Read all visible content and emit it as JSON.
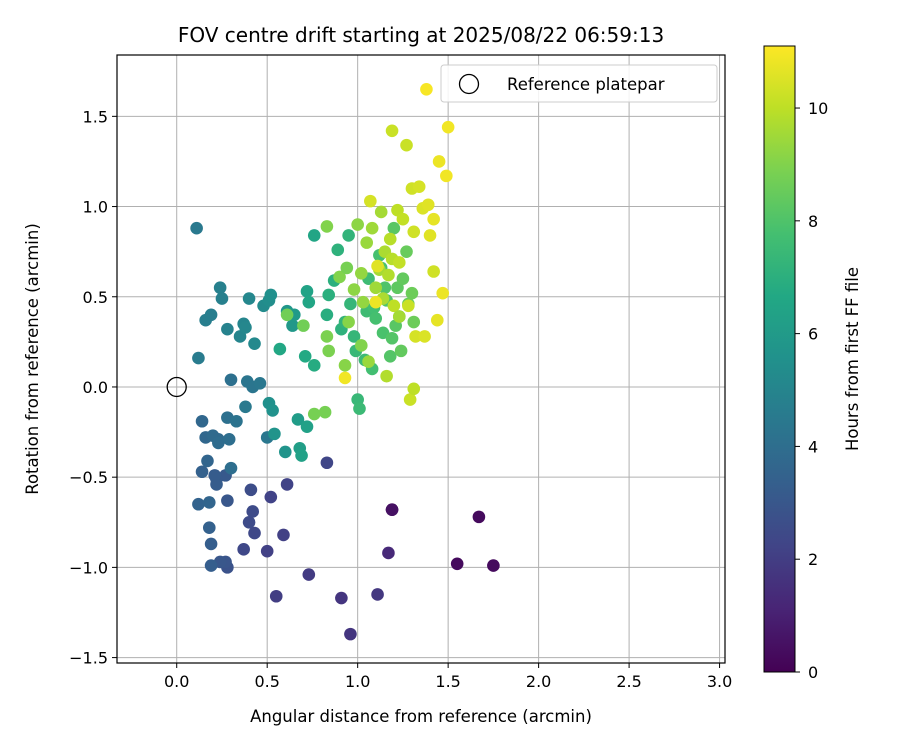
{
  "chart_data": {
    "type": "scatter",
    "title": "FOV centre drift starting at 2025/08/22 06:59:13",
    "xlabel": "Angular distance from reference (arcmin)",
    "ylabel": "Rotation from reference (arcmin)",
    "xlim": [
      -0.33,
      3.03
    ],
    "ylim": [
      -1.53,
      1.84
    ],
    "x_ticks": [
      0.0,
      0.5,
      1.0,
      1.5,
      2.0,
      2.5,
      3.0
    ],
    "x_tick_labels": [
      "0.0",
      "0.5",
      "1.0",
      "1.5",
      "2.0",
      "2.5",
      "3.0"
    ],
    "y_ticks": [
      -1.5,
      -1.0,
      -0.5,
      0.0,
      0.5,
      1.0,
      1.5
    ],
    "y_tick_labels": [
      "−1.5",
      "−1.0",
      "−0.5",
      "0.0",
      "0.5",
      "1.0",
      "1.5"
    ],
    "grid": true,
    "colormap": "viridis",
    "colorbar": {
      "label": "Hours from first FF file",
      "min": 0,
      "max": 11.1,
      "ticks": [
        0,
        2,
        4,
        6,
        8,
        10
      ],
      "tick_labels": [
        "0",
        "2",
        "4",
        "6",
        "8",
        "10"
      ]
    },
    "legend": {
      "position": "upper right",
      "entries": [
        {
          "label": "Reference platepar",
          "marker": "open-circle"
        }
      ]
    },
    "reference_point": {
      "x": 0.0,
      "y": 0.0
    },
    "points": [
      [
        1.19,
        -0.68,
        0.3
      ],
      [
        1.67,
        -0.72,
        0.3
      ],
      [
        1.55,
        -0.98,
        0.3
      ],
      [
        1.75,
        -0.99,
        0.3
      ],
      [
        1.19,
        -0.68,
        0.5
      ],
      [
        1.17,
        -0.92,
        1.3
      ],
      [
        0.96,
        -1.37,
        1.7
      ],
      [
        0.91,
        -1.17,
        1.7
      ],
      [
        1.11,
        -1.15,
        1.8
      ],
      [
        0.73,
        -1.04,
        1.9
      ],
      [
        0.55,
        -1.16,
        2.0
      ],
      [
        0.5,
        -0.91,
        2.1
      ],
      [
        0.59,
        -0.82,
        2.1
      ],
      [
        0.61,
        -0.54,
        2.2
      ],
      [
        0.52,
        -0.61,
        2.2
      ],
      [
        0.83,
        -0.42,
        2.3
      ],
      [
        0.37,
        -0.9,
        2.4
      ],
      [
        0.43,
        -0.81,
        2.4
      ],
      [
        0.4,
        -0.75,
        2.5
      ],
      [
        0.42,
        -0.69,
        2.5
      ],
      [
        0.41,
        -0.57,
        2.6
      ],
      [
        0.28,
        -1.0,
        2.8
      ],
      [
        0.27,
        -0.97,
        2.9
      ],
      [
        0.24,
        -0.97,
        3.0
      ],
      [
        0.28,
        -0.63,
        3.0
      ],
      [
        0.27,
        -0.49,
        3.1
      ],
      [
        0.22,
        -0.51,
        3.1
      ],
      [
        0.22,
        -0.54,
        3.2
      ],
      [
        0.21,
        -0.49,
        3.2
      ],
      [
        0.19,
        -0.99,
        3.3
      ],
      [
        0.19,
        -0.87,
        3.3
      ],
      [
        0.18,
        -0.78,
        3.4
      ],
      [
        0.14,
        -0.47,
        3.4
      ],
      [
        0.12,
        -0.65,
        3.5
      ],
      [
        0.18,
        -0.64,
        3.6
      ],
      [
        0.17,
        -0.41,
        3.6
      ],
      [
        0.16,
        -0.28,
        3.7
      ],
      [
        0.14,
        -0.19,
        3.7
      ],
      [
        0.2,
        -0.27,
        3.8
      ],
      [
        0.23,
        -0.29,
        3.8
      ],
      [
        0.23,
        -0.31,
        3.9
      ],
      [
        0.29,
        -0.29,
        4.0
      ],
      [
        0.3,
        -0.45,
        4.0
      ],
      [
        0.28,
        -0.17,
        4.1
      ],
      [
        0.3,
        0.04,
        4.1
      ],
      [
        0.33,
        -0.19,
        4.2
      ],
      [
        0.39,
        0.03,
        4.3
      ],
      [
        0.42,
        0.0,
        4.3
      ],
      [
        0.46,
        0.02,
        4.4
      ],
      [
        0.5,
        -0.28,
        4.4
      ],
      [
        0.38,
        -0.11,
        4.5
      ],
      [
        0.11,
        0.88,
        4.5
      ],
      [
        0.12,
        0.16,
        4.6
      ],
      [
        0.16,
        0.37,
        4.7
      ],
      [
        0.19,
        0.4,
        4.7
      ],
      [
        0.24,
        0.55,
        4.8
      ],
      [
        0.25,
        0.49,
        4.8
      ],
      [
        0.28,
        0.32,
        4.9
      ],
      [
        0.35,
        0.28,
        5.0
      ],
      [
        0.37,
        0.35,
        5.0
      ],
      [
        0.38,
        0.33,
        5.1
      ],
      [
        0.4,
        0.49,
        5.1
      ],
      [
        0.43,
        0.24,
        5.2
      ],
      [
        0.48,
        0.45,
        5.3
      ],
      [
        0.51,
        0.48,
        5.4
      ],
      [
        0.52,
        0.51,
        5.5
      ],
      [
        0.51,
        -0.09,
        5.5
      ],
      [
        0.53,
        -0.13,
        5.6
      ],
      [
        0.54,
        -0.26,
        5.7
      ],
      [
        0.6,
        -0.36,
        5.7
      ],
      [
        0.61,
        0.42,
        5.8
      ],
      [
        0.64,
        0.34,
        5.9
      ],
      [
        0.65,
        0.4,
        6.0
      ],
      [
        0.67,
        -0.18,
        6.1
      ],
      [
        0.68,
        -0.34,
        6.2
      ],
      [
        0.69,
        -0.38,
        6.3
      ],
      [
        0.72,
        -0.22,
        6.3
      ],
      [
        0.72,
        0.53,
        6.4
      ],
      [
        0.73,
        0.47,
        6.5
      ],
      [
        0.76,
        0.84,
        6.5
      ],
      [
        0.57,
        0.21,
        6.6
      ],
      [
        0.71,
        0.17,
        6.7
      ],
      [
        0.76,
        0.12,
        6.8
      ],
      [
        0.83,
        0.4,
        6.9
      ],
      [
        0.84,
        0.51,
        7.0
      ],
      [
        0.87,
        0.59,
        7.0
      ],
      [
        0.89,
        0.76,
        7.1
      ],
      [
        0.91,
        0.32,
        7.1
      ],
      [
        0.93,
        0.36,
        7.2
      ],
      [
        0.95,
        0.84,
        7.2
      ],
      [
        0.96,
        0.46,
        7.3
      ],
      [
        0.98,
        0.28,
        7.3
      ],
      [
        0.99,
        0.2,
        7.4
      ],
      [
        1.0,
        -0.07,
        7.4
      ],
      [
        1.01,
        -0.12,
        7.5
      ],
      [
        1.04,
        0.15,
        7.5
      ],
      [
        1.05,
        0.42,
        7.6
      ],
      [
        1.06,
        0.6,
        7.6
      ],
      [
        1.08,
        0.1,
        7.7
      ],
      [
        1.09,
        0.44,
        7.7
      ],
      [
        1.1,
        0.38,
        7.8
      ],
      [
        1.12,
        0.73,
        7.8
      ],
      [
        1.13,
        0.66,
        7.9
      ],
      [
        1.14,
        0.3,
        7.9
      ],
      [
        1.15,
        0.55,
        8.0
      ],
      [
        1.16,
        0.48,
        8.0
      ],
      [
        1.18,
        0.17,
        8.1
      ],
      [
        1.19,
        0.27,
        8.1
      ],
      [
        1.2,
        0.88,
        8.2
      ],
      [
        1.21,
        0.34,
        8.2
      ],
      [
        1.22,
        0.55,
        8.3
      ],
      [
        1.23,
        0.39,
        8.3
      ],
      [
        1.24,
        0.2,
        8.4
      ],
      [
        1.25,
        0.6,
        8.4
      ],
      [
        1.27,
        0.75,
        8.5
      ],
      [
        1.28,
        0.46,
        8.5
      ],
      [
        1.3,
        0.52,
        8.6
      ],
      [
        1.31,
        0.36,
        8.6
      ],
      [
        0.61,
        0.4,
        8.7
      ],
      [
        0.7,
        0.34,
        8.7
      ],
      [
        0.76,
        -0.15,
        8.8
      ],
      [
        0.82,
        -0.14,
        8.8
      ],
      [
        0.83,
        0.28,
        8.9
      ],
      [
        0.84,
        0.2,
        8.9
      ],
      [
        0.83,
        0.89,
        9.0
      ],
      [
        0.9,
        0.61,
        9.0
      ],
      [
        0.93,
        0.12,
        9.1
      ],
      [
        0.95,
        0.36,
        9.1
      ],
      [
        0.98,
        0.54,
        9.2
      ],
      [
        1.0,
        0.9,
        9.2
      ],
      [
        1.02,
        0.63,
        9.3
      ],
      [
        1.03,
        0.47,
        9.3
      ],
      [
        1.05,
        0.8,
        9.4
      ],
      [
        1.06,
        0.14,
        9.4
      ],
      [
        1.08,
        0.88,
        9.5
      ],
      [
        1.1,
        0.55,
        9.5
      ],
      [
        1.12,
        0.65,
        9.6
      ],
      [
        1.13,
        0.97,
        9.6
      ],
      [
        1.14,
        0.49,
        9.7
      ],
      [
        1.15,
        0.75,
        9.7
      ],
      [
        1.16,
        0.06,
        9.8
      ],
      [
        1.17,
        0.62,
        9.8
      ],
      [
        1.18,
        0.82,
        9.9
      ],
      [
        1.19,
        0.71,
        9.9
      ],
      [
        1.2,
        0.45,
        10.0
      ],
      [
        1.22,
        0.98,
        10.0
      ],
      [
        1.23,
        0.69,
        10.1
      ],
      [
        1.25,
        0.93,
        10.1
      ],
      [
        1.27,
        1.34,
        10.2
      ],
      [
        1.28,
        0.45,
        10.2
      ],
      [
        1.3,
        1.1,
        10.3
      ],
      [
        1.31,
        0.86,
        10.3
      ],
      [
        1.32,
        0.28,
        10.4
      ],
      [
        1.34,
        1.11,
        10.4
      ],
      [
        1.36,
        0.99,
        10.5
      ],
      [
        1.37,
        0.28,
        10.5
      ],
      [
        1.39,
        1.01,
        10.6
      ],
      [
        1.4,
        0.84,
        10.6
      ],
      [
        1.42,
        0.93,
        10.7
      ],
      [
        1.44,
        0.37,
        10.7
      ],
      [
        1.45,
        1.25,
        10.8
      ],
      [
        1.47,
        0.52,
        10.8
      ],
      [
        1.49,
        1.17,
        10.9
      ],
      [
        1.5,
        1.44,
        10.9
      ],
      [
        1.38,
        1.65,
        11.0
      ],
      [
        1.42,
        0.64,
        10.3
      ],
      [
        1.19,
        1.42,
        10.2
      ],
      [
        1.29,
        -0.07,
        10.2
      ],
      [
        1.31,
        -0.01,
        10.0
      ],
      [
        1.1,
        0.47,
        10.8
      ],
      [
        0.93,
        0.05,
        10.9
      ],
      [
        1.07,
        1.03,
        10.4
      ],
      [
        1.11,
        0.67,
        10.6
      ],
      [
        1.23,
        0.39,
        9.6
      ],
      [
        1.02,
        0.23,
        9.0
      ],
      [
        0.94,
        0.66,
        8.8
      ]
    ]
  }
}
